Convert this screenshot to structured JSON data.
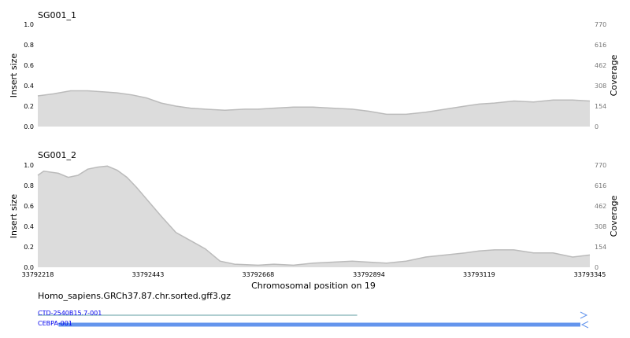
{
  "chart_data": [
    {
      "type": "area",
      "title": "SG001_1",
      "ylabel": "Insert size",
      "ylabel_right": "Coverage",
      "ylim": [
        0,
        1
      ],
      "yticks": [
        "0.0",
        "0.2",
        "0.4",
        "0.6",
        "0.8",
        "1.0"
      ],
      "ylim_right": [
        0,
        770
      ],
      "yticks_right": [
        "0",
        "154",
        "308",
        "462",
        "616",
        "770"
      ],
      "xlim": [
        33792218,
        33793345
      ],
      "x": [
        33792218,
        33792250,
        33792285,
        33792320,
        33792350,
        33792380,
        33792410,
        33792440,
        33792470,
        33792500,
        33792530,
        33792560,
        33792600,
        33792640,
        33792668,
        33792700,
        33792740,
        33792780,
        33792820,
        33792860,
        33792894,
        33792930,
        33792970,
        33793010,
        33793050,
        33793090,
        33793119,
        33793150,
        33793190,
        33793230,
        33793270,
        33793310,
        33793345
      ],
      "values": [
        0.3,
        0.32,
        0.35,
        0.35,
        0.34,
        0.33,
        0.31,
        0.28,
        0.23,
        0.2,
        0.18,
        0.17,
        0.16,
        0.17,
        0.17,
        0.18,
        0.19,
        0.19,
        0.18,
        0.17,
        0.15,
        0.12,
        0.12,
        0.14,
        0.17,
        0.2,
        0.22,
        0.23,
        0.25,
        0.24,
        0.26,
        0.26,
        0.25
      ],
      "fill": "#dcdcdc",
      "line": "#bbbbbb"
    },
    {
      "type": "area",
      "title": "SG001_2",
      "ylabel": "Insert size",
      "ylabel_right": "Coverage",
      "ylim": [
        0,
        1
      ],
      "yticks": [
        "0.0",
        "0.2",
        "0.4",
        "0.6",
        "0.8",
        "1.0"
      ],
      "ylim_right": [
        0,
        770
      ],
      "yticks_right": [
        "0",
        "154",
        "308",
        "462",
        "616",
        "770"
      ],
      "xlim": [
        33792218,
        33793345
      ],
      "x": [
        33792218,
        33792230,
        33792260,
        33792280,
        33792300,
        33792320,
        33792340,
        33792360,
        33792380,
        33792400,
        33792420,
        33792443,
        33792470,
        33792500,
        33792530,
        33792560,
        33792590,
        33792620,
        33792668,
        33792700,
        33792740,
        33792780,
        33792820,
        33792860,
        33792894,
        33792930,
        33792970,
        33793010,
        33793050,
        33793090,
        33793119,
        33793150,
        33793190,
        33793230,
        33793270,
        33793310,
        33793345
      ],
      "values": [
        0.9,
        0.94,
        0.92,
        0.88,
        0.9,
        0.96,
        0.98,
        0.99,
        0.95,
        0.88,
        0.78,
        0.65,
        0.5,
        0.34,
        0.26,
        0.18,
        0.06,
        0.03,
        0.02,
        0.03,
        0.02,
        0.04,
        0.05,
        0.06,
        0.05,
        0.04,
        0.06,
        0.1,
        0.12,
        0.14,
        0.16,
        0.17,
        0.17,
        0.14,
        0.14,
        0.1,
        0.12
      ],
      "fill": "#dcdcdc",
      "line": "#bbbbbb"
    }
  ],
  "x_axis": {
    "label": "Chromosomal position on 19",
    "ticks": [
      33792218,
      33792443,
      33792668,
      33792894,
      33793119,
      33793345
    ]
  },
  "annotation_track": {
    "file": "Homo_sapiens.GRCh37.87.chr.sorted.gff3.gz",
    "features": [
      {
        "name": "CTD-2540B15.7-001",
        "start": 33792218,
        "end": 33792870,
        "strand": "+",
        "style": "thin",
        "color": "#5f9ea0"
      },
      {
        "name": "CEBPA-001",
        "start": 33792238,
        "end": 33793345,
        "strand": "-",
        "style": "thick",
        "color": "#6495ed"
      }
    ],
    "arrow_color": "#6495ed"
  }
}
